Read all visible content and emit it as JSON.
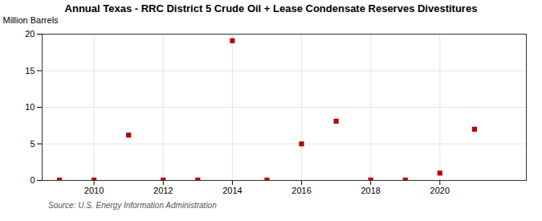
{
  "chart_data": {
    "type": "scatter",
    "title": "Annual Texas - RRC District 5 Crude Oil + Lease Condensate Reserves Divestitures",
    "ylabel": "Million Barrels",
    "source": "Source: U.S. Energy Information Administration",
    "x": [
      2009,
      2010,
      2011,
      2012,
      2013,
      2014,
      2015,
      2016,
      2017,
      2018,
      2019,
      2020,
      2021
    ],
    "values": [
      0.05,
      0.05,
      6.2,
      0.05,
      0.05,
      19.1,
      0.05,
      5.0,
      8.1,
      0.05,
      0.05,
      1.0,
      7.0
    ],
    "color": "#bb0000",
    "marker": "square",
    "xlim": [
      2008.5,
      2022.5
    ],
    "xticks": [
      2010,
      2012,
      2014,
      2016,
      2018,
      2020
    ],
    "ylim": [
      0,
      20
    ],
    "yticks": [
      0,
      5,
      10,
      15,
      20
    ],
    "grid": true
  }
}
